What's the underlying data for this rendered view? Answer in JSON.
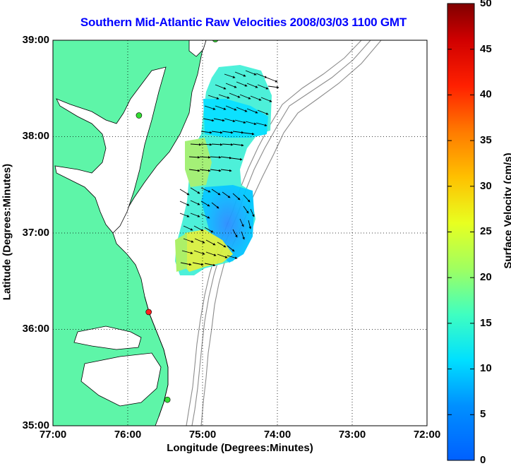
{
  "title": "Southern Mid-Atlantic Raw Velocities 2008/03/03 1100 GMT",
  "xlabel": "Longitude (Degrees:Minutes)",
  "ylabel": "Latitude (Degrees:Minutes)",
  "colorbar_label": "Surface Velocity (cm/s)",
  "x_ticks": [
    "77:00",
    "76:00",
    "75:00",
    "74:00",
    "73:00",
    "72:00"
  ],
  "y_ticks": [
    "39:00",
    "38:00",
    "37:00",
    "36:00",
    "35:00"
  ],
  "colorbar_ticks": [
    "50",
    "45",
    "40",
    "35",
    "30",
    "25",
    "20",
    "15",
    "10",
    "5",
    "0"
  ],
  "colors": {
    "land": "#5ef5a8",
    "title": "#0000ff",
    "bathymetry": "#8c8c8c",
    "station_green": "#33dd33",
    "station_red": "#ff2020"
  },
  "chart_data": {
    "type": "vector-field",
    "xlim": [
      -77,
      -72
    ],
    "ylim": [
      35,
      39
    ],
    "clim": [
      0,
      50
    ],
    "grid": true,
    "stations": [
      {
        "lon": -74.83,
        "lat": 39.01,
        "status": "green"
      },
      {
        "lon": -75.85,
        "lat": 38.22,
        "status": "green"
      },
      {
        "lon": -75.72,
        "lat": 36.18,
        "status": "red"
      },
      {
        "lon": -75.47,
        "lat": 35.27,
        "status": "green"
      }
    ]
  }
}
